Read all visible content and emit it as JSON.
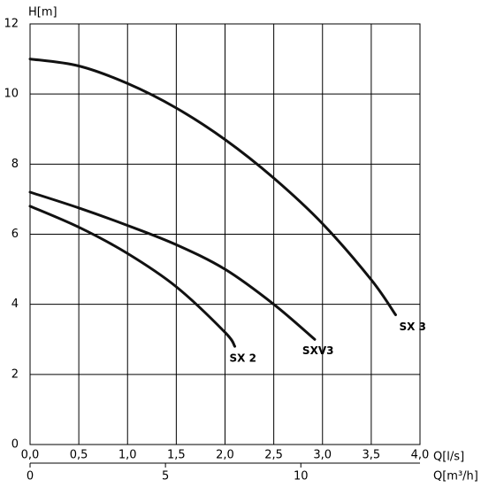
{
  "chart_data": {
    "type": "line",
    "y_label": "H[m]",
    "x_label": "Q[l/s]",
    "x2_label": "Q[m³/h]",
    "xlim": [
      0,
      4.0
    ],
    "xticks": [
      {
        "value": 0,
        "label": "0,0"
      },
      {
        "value": 0.5,
        "label": "0,5"
      },
      {
        "value": 1.0,
        "label": "1,0"
      },
      {
        "value": 1.5,
        "label": "1,5"
      },
      {
        "value": 2.0,
        "label": "2,0"
      },
      {
        "value": 2.5,
        "label": "2,5"
      },
      {
        "value": 3.0,
        "label": "3,0"
      },
      {
        "value": 3.5,
        "label": "3,5"
      },
      {
        "value": 4.0,
        "label": "4,0"
      }
    ],
    "x2lim": [
      0,
      14.4
    ],
    "x2ticks": [
      0,
      5,
      10
    ],
    "ylim": [
      0,
      12
    ],
    "yticks": [
      0,
      2,
      4,
      6,
      8,
      10,
      12
    ],
    "grid": true,
    "series": [
      {
        "name": "SX 3",
        "color": "#111111",
        "x": [
          0,
          0.5,
          1.0,
          1.5,
          2.0,
          2.5,
          3.0,
          3.5,
          3.75
        ],
        "values": [
          11,
          10.8,
          10.3,
          9.6,
          8.7,
          7.6,
          6.3,
          4.7,
          3.7
        ]
      },
      {
        "name": "SXV3",
        "color": "#111111",
        "x": [
          0,
          0.5,
          1.0,
          1.5,
          2.0,
          2.5,
          2.92
        ],
        "values": [
          7.2,
          6.75,
          6.25,
          5.7,
          5.0,
          4.0,
          3.0
        ]
      },
      {
        "name": "SX 2",
        "color": "#111111",
        "x": [
          0,
          0.5,
          1.0,
          1.5,
          2.0,
          2.1
        ],
        "values": [
          6.8,
          6.2,
          5.45,
          4.5,
          3.2,
          2.8
        ]
      }
    ]
  }
}
